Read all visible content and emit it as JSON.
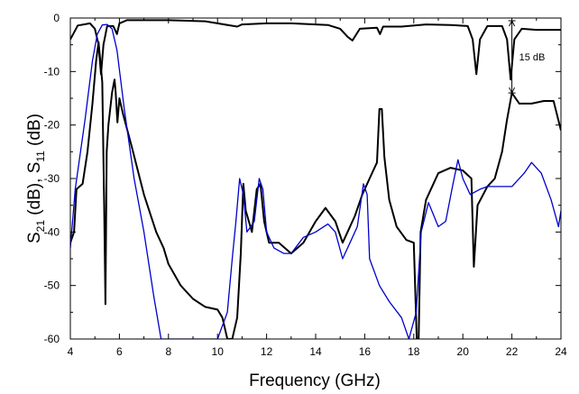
{
  "chart_data": {
    "type": "line",
    "title": "",
    "xlabel": "Frequency (GHz)",
    "ylabel_parts": [
      "S",
      "21",
      " (dB), S",
      "11",
      " (dB)"
    ],
    "xlim": [
      4,
      24
    ],
    "ylim": [
      -60,
      0
    ],
    "xticks": [
      "4",
      "6",
      "8",
      "10",
      "12",
      "14",
      "16",
      "18",
      "20",
      "22",
      "24"
    ],
    "yticks": [
      "0",
      "-10",
      "-20",
      "-30",
      "-40",
      "-50",
      "-60"
    ],
    "grid": false,
    "annotations": [
      {
        "text": "15 dB",
        "x": 22,
        "y_top": -0.5,
        "y_bottom": -14
      }
    ],
    "series": [
      {
        "color": "#000000",
        "values": [
          [
            4.0,
            -4.0
          ],
          [
            4.3,
            -1.4
          ],
          [
            4.8,
            -1.0
          ],
          [
            5.0,
            -2.0
          ],
          [
            5.15,
            -5
          ],
          [
            5.25,
            -10.5
          ],
          [
            5.35,
            -5
          ],
          [
            5.5,
            -1.5
          ],
          [
            5.75,
            -1.5
          ],
          [
            5.9,
            -3
          ],
          [
            6.0,
            -1
          ],
          [
            6.3,
            -0.4
          ],
          [
            8,
            -0.4
          ],
          [
            9.5,
            -0.6
          ],
          [
            10,
            -1
          ],
          [
            10.8,
            -1.6
          ],
          [
            11,
            -1.2
          ],
          [
            12,
            -1
          ],
          [
            13,
            -1
          ],
          [
            14.5,
            -1.3
          ],
          [
            15,
            -2
          ],
          [
            15.3,
            -3.5
          ],
          [
            15.5,
            -4.2
          ],
          [
            15.8,
            -2
          ],
          [
            16.5,
            -1.8
          ],
          [
            16.62,
            -3
          ],
          [
            16.75,
            -1.6
          ],
          [
            17.5,
            -1.6
          ],
          [
            18.5,
            -1.2
          ],
          [
            19.5,
            -1.3
          ],
          [
            20.2,
            -1.5
          ],
          [
            20.4,
            -4
          ],
          [
            20.55,
            -10.5
          ],
          [
            20.7,
            -4
          ],
          [
            21,
            -1.5
          ],
          [
            21.6,
            -1.5
          ],
          [
            21.8,
            -4
          ],
          [
            21.95,
            -11.5
          ],
          [
            22.1,
            -4
          ],
          [
            22.4,
            -2
          ],
          [
            23,
            -2.2
          ],
          [
            24,
            -2.2
          ]
        ]
      },
      {
        "color": "#000000",
        "values": [
          [
            4.0,
            -42
          ],
          [
            4.15,
            -40
          ],
          [
            4.25,
            -32
          ],
          [
            4.5,
            -31
          ],
          [
            4.7,
            -25
          ],
          [
            4.9,
            -16
          ],
          [
            5.05,
            -8
          ],
          [
            5.15,
            -4.5
          ],
          [
            5.3,
            -12
          ],
          [
            5.38,
            -35
          ],
          [
            5.43,
            -53.5
          ],
          [
            5.48,
            -25
          ],
          [
            5.55,
            -20
          ],
          [
            5.7,
            -14
          ],
          [
            5.8,
            -11.5
          ],
          [
            5.85,
            -14
          ],
          [
            5.92,
            -19.5
          ],
          [
            6.0,
            -15
          ],
          [
            6.15,
            -18
          ],
          [
            6.5,
            -24
          ],
          [
            7.0,
            -33
          ],
          [
            7.5,
            -40
          ],
          [
            7.8,
            -43
          ],
          [
            8.0,
            -46
          ],
          [
            8.5,
            -50
          ],
          [
            9,
            -52.5
          ],
          [
            9.5,
            -54
          ],
          [
            10,
            -54.5
          ],
          [
            10.2,
            -56
          ],
          [
            10.4,
            -60
          ],
          [
            10.6,
            -60
          ],
          [
            10.8,
            -56
          ],
          [
            10.95,
            -44
          ],
          [
            11.05,
            -31
          ],
          [
            11.15,
            -36
          ],
          [
            11.4,
            -40
          ],
          [
            11.6,
            -32
          ],
          [
            11.75,
            -31
          ],
          [
            11.9,
            -38
          ],
          [
            12.1,
            -42
          ],
          [
            12.5,
            -42
          ],
          [
            13,
            -44
          ],
          [
            13.5,
            -42
          ],
          [
            14,
            -38
          ],
          [
            14.4,
            -35.5
          ],
          [
            14.8,
            -38
          ],
          [
            15.1,
            -42
          ],
          [
            15.3,
            -40
          ],
          [
            15.6,
            -37
          ],
          [
            15.9,
            -33
          ],
          [
            16.2,
            -30
          ],
          [
            16.5,
            -27
          ],
          [
            16.6,
            -17
          ],
          [
            16.7,
            -17
          ],
          [
            16.8,
            -26
          ],
          [
            17.0,
            -34
          ],
          [
            17.3,
            -39
          ],
          [
            17.7,
            -41.5
          ],
          [
            18.0,
            -42
          ],
          [
            18.12,
            -60
          ],
          [
            18.2,
            -60
          ],
          [
            18.28,
            -40
          ],
          [
            18.5,
            -34
          ],
          [
            19.0,
            -29
          ],
          [
            19.5,
            -28
          ],
          [
            20.0,
            -28.5
          ],
          [
            20.35,
            -30
          ],
          [
            20.45,
            -46.5
          ],
          [
            20.6,
            -35
          ],
          [
            21,
            -31.5
          ],
          [
            21.3,
            -30
          ],
          [
            21.6,
            -25
          ],
          [
            21.8,
            -19
          ],
          [
            22.0,
            -14
          ],
          [
            22.3,
            -16
          ],
          [
            22.8,
            -16
          ],
          [
            23.3,
            -15.5
          ],
          [
            23.7,
            -15.5
          ],
          [
            24,
            -21
          ]
        ]
      },
      {
        "color": "#0000cc",
        "values": [
          [
            4.0,
            -43
          ],
          [
            4.2,
            -32
          ],
          [
            4.6,
            -19
          ],
          [
            4.9,
            -8
          ],
          [
            5.1,
            -3
          ],
          [
            5.3,
            -1.3
          ],
          [
            5.5,
            -1.2
          ],
          [
            5.7,
            -2
          ],
          [
            5.9,
            -6
          ],
          [
            6.2,
            -17
          ],
          [
            6.6,
            -30
          ],
          [
            7.0,
            -40
          ],
          [
            7.4,
            -52
          ],
          [
            7.7,
            -60
          ],
          [
            10.0,
            -60
          ],
          [
            10.4,
            -55
          ],
          [
            10.6,
            -45
          ],
          [
            10.75,
            -38
          ],
          [
            10.9,
            -30
          ],
          [
            11.05,
            -33
          ],
          [
            11.2,
            -40
          ],
          [
            11.5,
            -38
          ],
          [
            11.7,
            -30
          ],
          [
            11.85,
            -32
          ],
          [
            12.0,
            -40
          ],
          [
            12.3,
            -43
          ],
          [
            12.7,
            -44
          ],
          [
            13.0,
            -44
          ],
          [
            13.5,
            -41
          ],
          [
            14.0,
            -40
          ],
          [
            14.5,
            -38.5
          ],
          [
            14.8,
            -40
          ],
          [
            15.1,
            -45
          ],
          [
            15.4,
            -42
          ],
          [
            15.7,
            -39
          ],
          [
            15.95,
            -31
          ],
          [
            16.1,
            -33
          ],
          [
            16.2,
            -45
          ],
          [
            16.6,
            -50
          ],
          [
            17.0,
            -53
          ],
          [
            17.5,
            -56
          ],
          [
            17.8,
            -60
          ],
          [
            18.1,
            -55
          ],
          [
            18.3,
            -40
          ],
          [
            18.6,
            -34.5
          ],
          [
            19.0,
            -39
          ],
          [
            19.3,
            -38
          ],
          [
            19.6,
            -31
          ],
          [
            19.8,
            -26.5
          ],
          [
            20.0,
            -30
          ],
          [
            20.3,
            -33
          ],
          [
            20.7,
            -32
          ],
          [
            21.0,
            -31.5
          ],
          [
            21.5,
            -31.5
          ],
          [
            22.0,
            -31.5
          ],
          [
            22.5,
            -29
          ],
          [
            22.8,
            -27
          ],
          [
            23.2,
            -29
          ],
          [
            23.6,
            -34
          ],
          [
            23.9,
            -39
          ],
          [
            24,
            -36
          ]
        ]
      }
    ]
  }
}
